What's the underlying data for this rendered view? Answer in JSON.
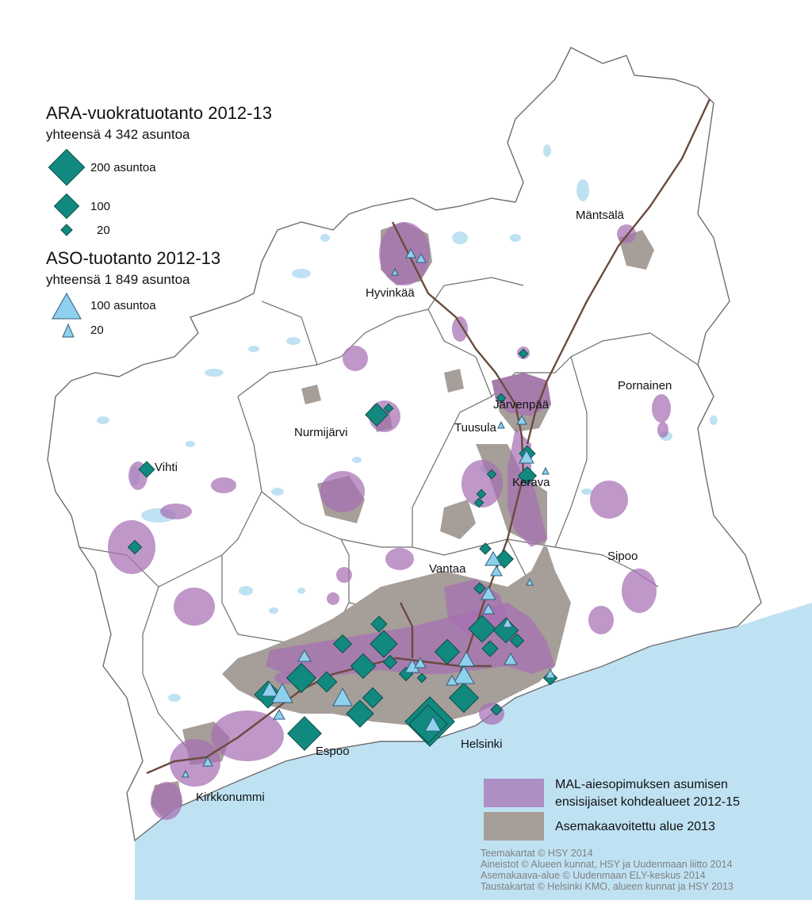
{
  "legend": {
    "ara_title": "ARA-vuokratuotanto 2012-13",
    "ara_total": "yhteensä 4 342 asuntoa",
    "ara_sizes": [
      "200 asuntoa",
      "100",
      "20"
    ],
    "aso_title": "ASO-tuotanto 2012-13",
    "aso_total": "yhteensä 1 849 asuntoa",
    "aso_sizes": [
      "100 asuntoa",
      "20"
    ]
  },
  "places": {
    "hyvinkaa": "Hyvinkää",
    "mantsala": "Mäntsälä",
    "pornainen": "Pornainen",
    "jarvenpaa": "Järvenpää",
    "tuusula": "Tuusula",
    "nurmijarvi": "Nurmijärvi",
    "vihti": "Vihti",
    "kerava": "Kerava",
    "vantaa": "Vantaa",
    "sipoo": "Sipoo",
    "espoo": "Espoo",
    "helsinki": "Helsinki",
    "kirkkonummi": "Kirkkonummi"
  },
  "area_key": {
    "mal_line1": "MAL-aiesopimuksen asumisen",
    "mal_line2": "ensisijaiset kohdealueet 2012-15",
    "zoned": "Asemakaavoitettu alue 2013"
  },
  "credits": [
    "Teemakartat © HSY 2014",
    "Aineistot © Alueen kunnat, HSY ja Uudenmaan liitto 2014",
    "Asemakaava-alue © Uudenmaan ELY-keskus 2014",
    "Taustakartat © Helsinki KMO, alueen kunnat ja HSY 2013"
  ],
  "colors": {
    "sea": "#bfe2f3",
    "land": "#ffffff",
    "boundary": "#6e6e6e",
    "mal_area": "#a66fb3",
    "zoned_area": "#a69e99",
    "ara_marker": "#12897f",
    "aso_marker": "#8fd0ee",
    "railway": "#6b4a3e"
  }
}
